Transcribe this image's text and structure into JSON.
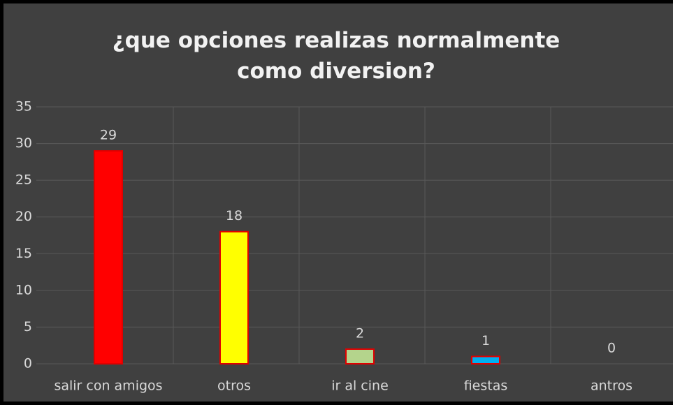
{
  "chart_data": {
    "type": "bar",
    "title": "¿que opciones realizas normalmente como diversion?",
    "categories": [
      "salir con amigos",
      "otros",
      "ir al cine",
      "fiestas",
      "antros"
    ],
    "values": [
      29,
      18,
      2,
      1,
      0
    ],
    "colors": [
      "#ff0000",
      "#ffff00",
      "#b4d48c",
      "#00b0f0",
      "#7f7f7f"
    ],
    "ylim": [
      0,
      35
    ],
    "yticks": [
      0,
      5,
      10,
      15,
      20,
      25,
      30,
      35
    ],
    "grid": true
  }
}
